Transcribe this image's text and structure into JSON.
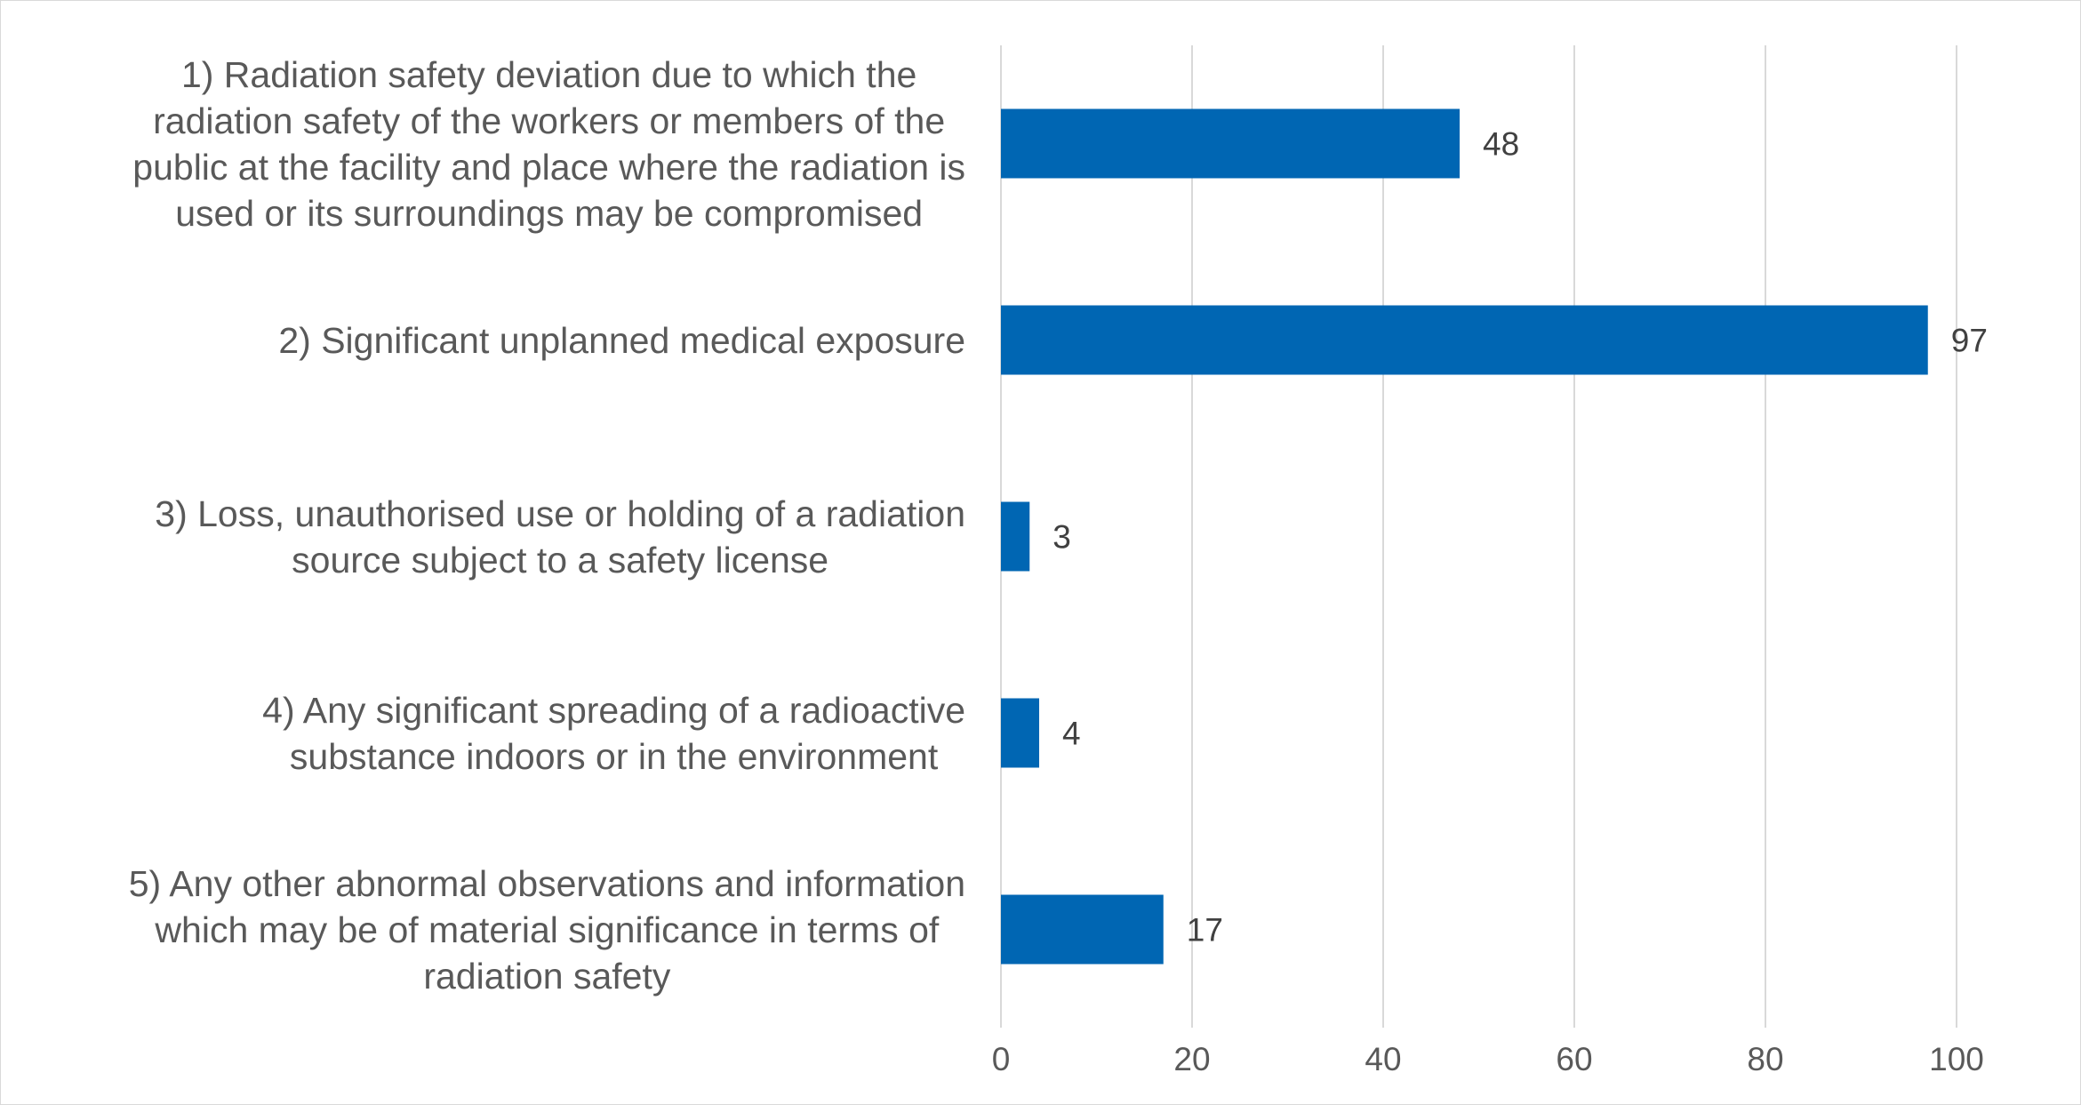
{
  "chart_data": {
    "type": "bar",
    "orientation": "horizontal",
    "title": "",
    "xlabel": "",
    "ylabel": "",
    "categories": [
      [
        "1) Radiation safety deviation due to which the",
        "radiation safety of the workers or members of the",
        "public at the facility and place where the radiation is",
        "used or its surroundings may be compromised"
      ],
      [
        "2) Significant unplanned medical exposure"
      ],
      [
        "3) Loss, unauthorised use or holding of a radiation",
        "source subject to a safety license"
      ],
      [
        "4) Any significant spreading of a radioactive",
        "substance indoors or in the environment"
      ],
      [
        "5) Any other abnormal observations and information",
        "which may be of material significance in terms of",
        "radiation safety"
      ]
    ],
    "values": [
      48,
      97,
      3,
      4,
      17
    ],
    "xlim": [
      0,
      100
    ],
    "xticks": [
      0,
      20,
      40,
      60,
      80,
      100
    ],
    "grid": "vertical",
    "legend": "none",
    "data_labels": true,
    "bar_color": "#0066B3",
    "grid_color": "#d9d9d9",
    "text_color": "#595959"
  }
}
